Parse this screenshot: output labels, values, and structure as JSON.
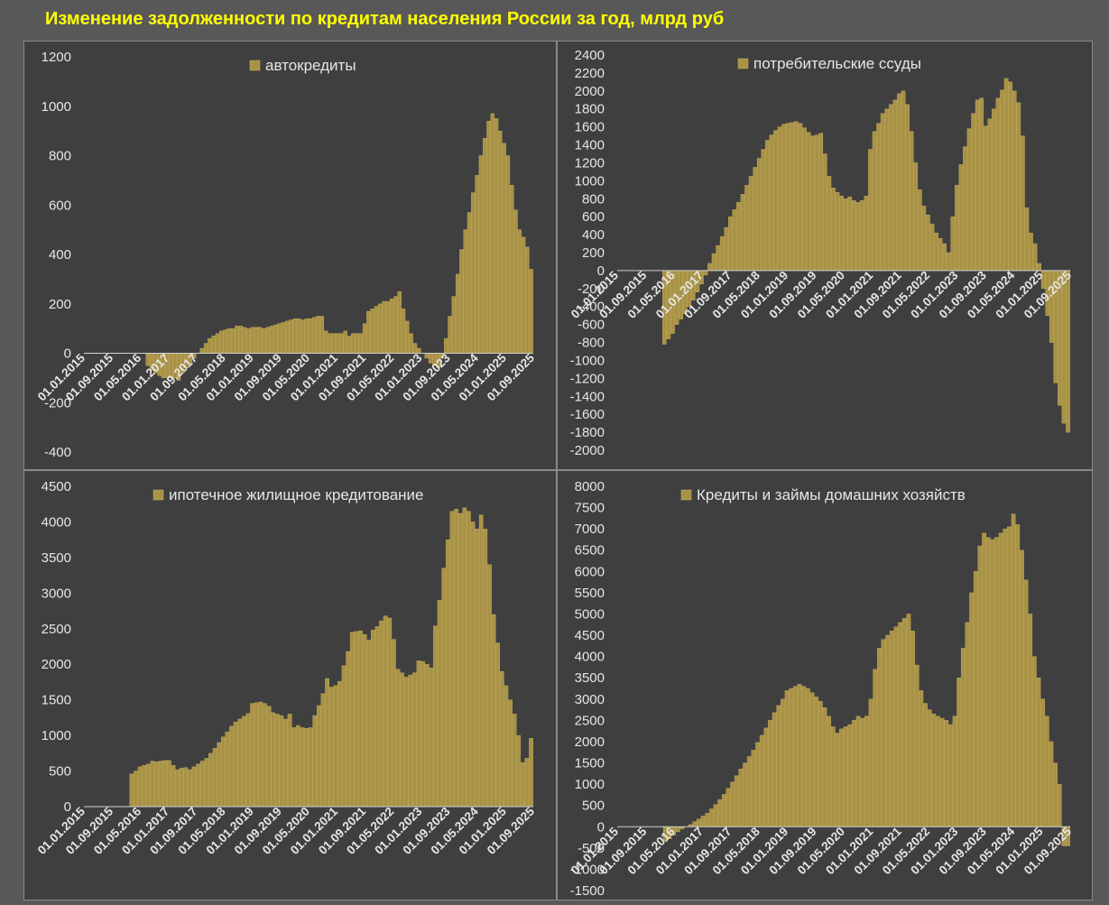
{
  "page_title": "Изменение задолженности по кредитам населения России за год, млрд руб",
  "colors": {
    "background": "#585858",
    "panel": "#3f3f3f",
    "bar": "#a89246",
    "bar_edge": "#c9b061",
    "title": "#ffff00",
    "text": "#e6e6e6",
    "axis": "#d0d0d0"
  },
  "chart_data": [
    {
      "type": "bar",
      "legend": "автокредиты",
      "legend_position": "top-center",
      "ylim": [
        -400,
        1200
      ],
      "yticks": [
        -400,
        -200,
        0,
        200,
        400,
        600,
        800,
        1000,
        1200
      ],
      "x_labels": [
        "01.01.2015",
        "01.09.2015",
        "01.05.2016",
        "01.01.2017",
        "01.09.2017",
        "01.05.2018",
        "01.01.2019",
        "01.09.2019",
        "01.05.2020",
        "01.01.2021",
        "01.09.2021",
        "01.05.2022",
        "01.01.2023",
        "01.09.2023",
        "01.05.2024",
        "01.01.2025",
        "01.09.2025"
      ],
      "values": [
        0,
        0,
        0,
        0,
        0,
        0,
        0,
        0,
        0,
        0,
        0,
        0,
        0,
        0,
        0,
        0,
        -50,
        -70,
        -80,
        -90,
        -100,
        -100,
        -100,
        -100,
        -110,
        -80,
        -60,
        -40,
        -20,
        0,
        20,
        40,
        60,
        70,
        80,
        90,
        95,
        100,
        100,
        110,
        110,
        105,
        100,
        105,
        105,
        105,
        100,
        105,
        110,
        115,
        120,
        125,
        130,
        135,
        140,
        140,
        135,
        140,
        140,
        145,
        150,
        150,
        90,
        80,
        80,
        80,
        80,
        90,
        70,
        80,
        80,
        80,
        120,
        170,
        180,
        190,
        200,
        210,
        210,
        220,
        230,
        250,
        180,
        130,
        80,
        40,
        20,
        0,
        -20,
        -40,
        -50,
        -60,
        -20,
        60,
        150,
        230,
        320,
        420,
        500,
        570,
        650,
        720,
        800,
        870,
        940,
        970,
        950,
        900,
        850,
        800,
        680,
        580,
        500,
        470,
        430,
        340
      ],
      "end_marker": false
    },
    {
      "type": "bar",
      "legend": "потребительские ссуды",
      "legend_position": "top-center",
      "ylim": [
        -2000,
        2400
      ],
      "yticks": [
        -2000,
        -1800,
        -1600,
        -1400,
        -1200,
        -1000,
        -800,
        -600,
        -400,
        -200,
        0,
        200,
        400,
        600,
        800,
        1000,
        1200,
        1400,
        1600,
        1800,
        2000,
        2200,
        2400
      ],
      "x_labels": [
        "01.01.2015",
        "01.09.2015",
        "01.05.2016",
        "01.01.2017",
        "01.09.2017",
        "01.05.2018",
        "01.01.2019",
        "01.09.2019",
        "01.05.2020",
        "01.01.2021",
        "01.09.2021",
        "01.05.2022",
        "01.01.2023",
        "01.09.2023",
        "01.05.2024",
        "01.01.2025",
        "01.09.2025"
      ],
      "values": [
        0,
        0,
        0,
        0,
        0,
        0,
        0,
        0,
        0,
        0,
        0,
        -820,
        -760,
        -700,
        -600,
        -540,
        -480,
        -400,
        -330,
        -240,
        -150,
        -50,
        80,
        190,
        280,
        380,
        480,
        600,
        680,
        760,
        850,
        950,
        1050,
        1150,
        1250,
        1350,
        1450,
        1510,
        1560,
        1600,
        1630,
        1640,
        1650,
        1660,
        1640,
        1590,
        1540,
        1500,
        1510,
        1530,
        1300,
        1050,
        920,
        870,
        830,
        800,
        820,
        780,
        760,
        780,
        830,
        1350,
        1550,
        1640,
        1750,
        1800,
        1850,
        1900,
        1970,
        2000,
        1850,
        1550,
        1200,
        900,
        720,
        620,
        520,
        420,
        360,
        300,
        200,
        600,
        950,
        1180,
        1380,
        1580,
        1750,
        1900,
        1920,
        1610,
        1690,
        1800,
        1920,
        2010,
        2140,
        2100,
        2000,
        1870,
        1500,
        700,
        420,
        300,
        80,
        -200,
        -500,
        -800,
        -1250,
        -1500,
        -1700,
        -1800
      ],
      "end_marker": false
    },
    {
      "type": "bar",
      "legend": "ипотечное жилищное кредитование",
      "legend_position": "top-center",
      "ylim": [
        0,
        4500
      ],
      "yticks": [
        0,
        500,
        1000,
        1500,
        2000,
        2500,
        3000,
        3500,
        4000,
        4500
      ],
      "x_labels": [
        "01.01.2015",
        "01.09.2015",
        "01.05.2016",
        "01.01.2017",
        "01.09.2017",
        "01.05.2018",
        "01.01.2019",
        "01.09.2019",
        "01.05.2020",
        "01.01.2021",
        "01.09.2021",
        "01.05.2022",
        "01.01.2023",
        "01.09.2023",
        "01.05.2024",
        "01.01.2025",
        "01.09.2025"
      ],
      "values": [
        0,
        0,
        0,
        0,
        0,
        0,
        0,
        0,
        0,
        0,
        0,
        460,
        500,
        560,
        580,
        600,
        640,
        630,
        640,
        650,
        650,
        580,
        520,
        540,
        550,
        520,
        560,
        600,
        640,
        680,
        750,
        820,
        900,
        980,
        1050,
        1130,
        1190,
        1230,
        1270,
        1310,
        1450,
        1460,
        1470,
        1450,
        1410,
        1320,
        1300,
        1280,
        1230,
        1300,
        1110,
        1140,
        1110,
        1100,
        1110,
        1280,
        1420,
        1590,
        1800,
        1680,
        1700,
        1760,
        1980,
        2180,
        2450,
        2460,
        2470,
        2420,
        2340,
        2480,
        2530,
        2610,
        2680,
        2650,
        2350,
        1930,
        1880,
        1820,
        1850,
        1880,
        2050,
        2040,
        2000,
        1950,
        2540,
        2900,
        3350,
        3750,
        4150,
        4180,
        4120,
        4200,
        4150,
        4000,
        3900,
        4100,
        3900,
        3400,
        2700,
        2300,
        1900,
        1700,
        1500,
        1300,
        1000,
        620,
        680,
        960
      ],
      "end_marker": false
    },
    {
      "type": "bar",
      "legend": "Кредиты и займы домашних хозяйств",
      "legend_position": "top-center",
      "ylim": [
        -1500,
        8000
      ],
      "yticks": [
        -1500,
        -1000,
        -500,
        0,
        500,
        1000,
        1500,
        2000,
        2500,
        3000,
        3500,
        4000,
        4500,
        5000,
        5500,
        6000,
        6500,
        7000,
        7500,
        8000
      ],
      "x_labels": [
        "01.01.2015",
        "01.09.2015",
        "01.05.2016",
        "01.01.2017",
        "01.09.2017",
        "01.05.2018",
        "01.01.2019",
        "01.09.2019",
        "01.05.2020",
        "01.01.2021",
        "01.09.2021",
        "01.05.2022",
        "01.01.2023",
        "01.09.2023",
        "01.05.2024",
        "01.01.2025",
        "01.09.2025"
      ],
      "values": [
        0,
        0,
        0,
        0,
        0,
        0,
        0,
        0,
        0,
        0,
        0,
        -350,
        -280,
        -200,
        -120,
        -50,
        0,
        50,
        120,
        180,
        250,
        320,
        420,
        520,
        640,
        760,
        900,
        1050,
        1200,
        1360,
        1500,
        1650,
        1800,
        1980,
        2150,
        2320,
        2500,
        2680,
        2850,
        3000,
        3200,
        3250,
        3300,
        3350,
        3300,
        3250,
        3150,
        3050,
        2950,
        2800,
        2600,
        2350,
        2200,
        2300,
        2350,
        2400,
        2500,
        2600,
        2550,
        2600,
        3000,
        3700,
        4200,
        4400,
        4500,
        4600,
        4700,
        4800,
        4900,
        5000,
        4600,
        3800,
        3200,
        2900,
        2750,
        2650,
        2600,
        2550,
        2500,
        2400,
        2600,
        3500,
        4200,
        4800,
        5500,
        6000,
        6600,
        6900,
        6800,
        6750,
        6800,
        6900,
        7000,
        7050,
        7350,
        7100,
        6500,
        5800,
        5000,
        4000,
        3500,
        3000,
        2600,
        2000,
        1500,
        1000,
        -450,
        -450
      ],
      "end_marker": false
    }
  ]
}
